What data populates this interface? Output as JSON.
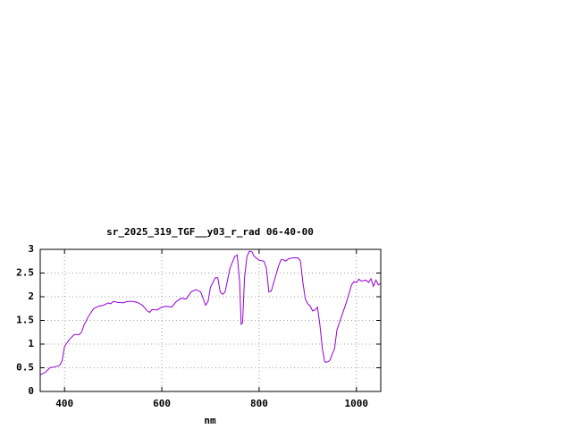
{
  "chart_data": {
    "type": "line",
    "title": "sr_2025_319_TGF__y03_r_rad 06-40-00",
    "x_label": "nm",
    "color": "#9400d3",
    "grid": true,
    "xlim": [
      350,
      1050
    ],
    "xticks": [
      400,
      600,
      800,
      1000
    ],
    "ylim": [
      0,
      3
    ],
    "yticks": [
      0,
      0.5,
      1,
      1.5,
      2,
      2.5,
      3
    ],
    "x": [
      350,
      360,
      370,
      380,
      390,
      395,
      400,
      410,
      420,
      430,
      435,
      440,
      450,
      460,
      470,
      480,
      490,
      495,
      500,
      510,
      520,
      530,
      540,
      550,
      560,
      570,
      575,
      580,
      590,
      600,
      610,
      620,
      630,
      640,
      650,
      660,
      670,
      680,
      690,
      695,
      700,
      710,
      715,
      720,
      725,
      730,
      740,
      750,
      755,
      760,
      763,
      766,
      770,
      775,
      780,
      785,
      790,
      800,
      810,
      815,
      820,
      825,
      830,
      840,
      845,
      850,
      855,
      860,
      870,
      880,
      885,
      890,
      895,
      900,
      905,
      910,
      915,
      920,
      925,
      930,
      935,
      940,
      945,
      950,
      955,
      960,
      970,
      980,
      990,
      995,
      1000,
      1005,
      1010,
      1020,
      1025,
      1030,
      1035,
      1040,
      1045,
      1050
    ],
    "values": [
      0.35,
      0.4,
      0.5,
      0.52,
      0.55,
      0.65,
      0.95,
      1.1,
      1.2,
      1.2,
      1.25,
      1.4,
      1.6,
      1.75,
      1.8,
      1.82,
      1.87,
      1.85,
      1.9,
      1.88,
      1.87,
      1.9,
      1.9,
      1.88,
      1.82,
      1.7,
      1.67,
      1.73,
      1.72,
      1.78,
      1.8,
      1.78,
      1.9,
      1.97,
      1.95,
      2.1,
      2.15,
      2.1,
      1.82,
      1.9,
      2.2,
      2.4,
      2.4,
      2.1,
      2.05,
      2.1,
      2.6,
      2.85,
      2.88,
      2.3,
      1.42,
      1.45,
      2.4,
      2.85,
      2.96,
      2.95,
      2.85,
      2.77,
      2.75,
      2.6,
      2.1,
      2.12,
      2.3,
      2.65,
      2.78,
      2.78,
      2.75,
      2.8,
      2.82,
      2.82,
      2.75,
      2.3,
      1.95,
      1.85,
      1.8,
      1.7,
      1.72,
      1.78,
      1.4,
      0.9,
      0.62,
      0.62,
      0.65,
      0.78,
      0.9,
      1.3,
      1.6,
      1.9,
      2.25,
      2.32,
      2.3,
      2.37,
      2.33,
      2.35,
      2.3,
      2.38,
      2.22,
      2.35,
      2.25,
      2.28
    ]
  }
}
